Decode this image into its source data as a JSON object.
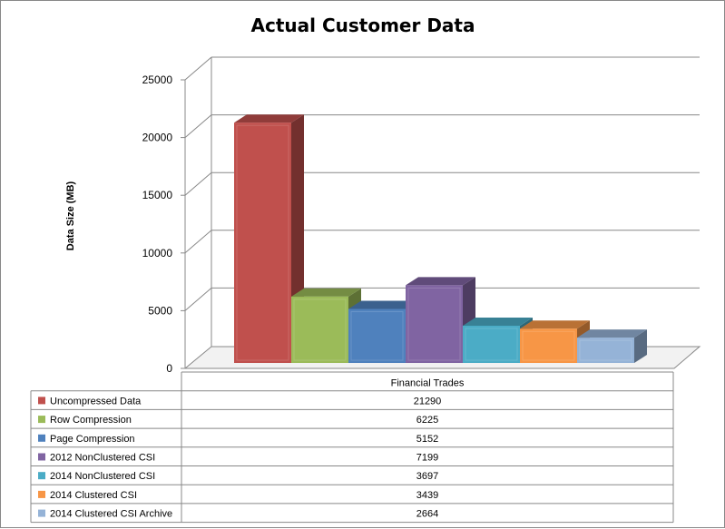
{
  "chart_data": {
    "type": "bar",
    "title": "Actual Customer Data",
    "ylabel": "Data Size (MB)",
    "xlabel": "",
    "categories": [
      "Financial Trades"
    ],
    "ylim": [
      0,
      25000
    ],
    "yticks": [
      0,
      5000,
      10000,
      15000,
      20000,
      25000
    ],
    "grid": true,
    "legend": "data-table",
    "series": [
      {
        "name": "Uncompressed Data",
        "values": [
          21290
        ],
        "color": "#c0504d"
      },
      {
        "name": "Row Compression",
        "values": [
          6225
        ],
        "color": "#9bbb59"
      },
      {
        "name": "Page Compression",
        "values": [
          5152
        ],
        "color": "#4f81bd"
      },
      {
        "name": "2012 NonClustered CSI",
        "values": [
          7199
        ],
        "color": "#8064a2"
      },
      {
        "name": "2014 NonClustered CSI",
        "values": [
          3697
        ],
        "color": "#4bacc6"
      },
      {
        "name": "2014 Clustered CSI",
        "values": [
          3439
        ],
        "color": "#f79646"
      },
      {
        "name": "2014 Clustered CSI Archive",
        "values": [
          2664
        ],
        "color": "#95b3d7"
      }
    ]
  }
}
